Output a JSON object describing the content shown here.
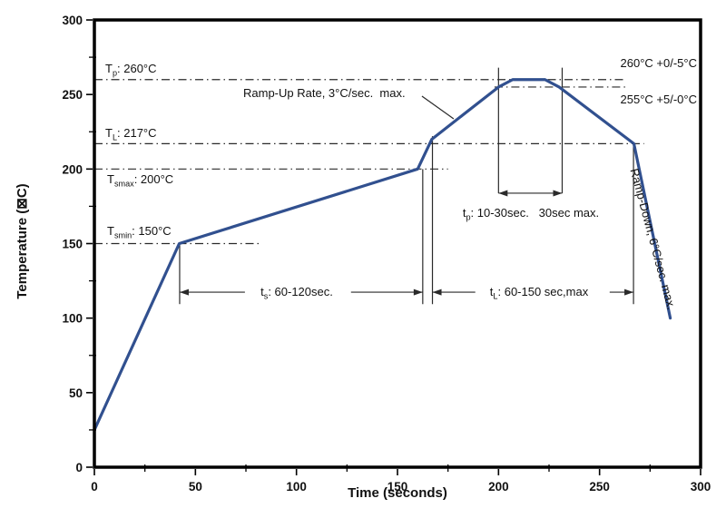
{
  "page": {
    "background": "#ffffff"
  },
  "chart_data": {
    "type": "line",
    "title": "",
    "xlabel": "Time (seconds)",
    "ylabel": "Temperature (⊠C)",
    "xlim": [
      0,
      300
    ],
    "ylim": [
      0,
      300
    ],
    "x_ticks": [
      0,
      50,
      100,
      150,
      200,
      250,
      300
    ],
    "y_ticks": [
      0,
      50,
      100,
      150,
      200,
      250,
      300
    ],
    "minor_tick_step": 25,
    "grid": false,
    "line_color": "#31508f",
    "axis_color": "#000000",
    "annotation_line_color": "#2a2a2a",
    "series": [
      {
        "name": "reflow-temperature-profile",
        "points_time_sec_temp_c": [
          [
            0,
            25
          ],
          [
            42,
            150
          ],
          [
            160,
            200
          ],
          [
            167,
            220
          ],
          [
            200,
            255
          ],
          [
            207,
            260
          ],
          [
            223,
            260
          ],
          [
            230,
            255
          ],
          [
            267,
            217
          ],
          [
            285,
            100
          ]
        ]
      }
    ],
    "reference_lines": [
      {
        "id": "tp",
        "temp_c": 260,
        "t_start": 0,
        "t_end": 263
      },
      {
        "id": "peak255",
        "temp_c": 255,
        "t_start": 198,
        "t_end": 263
      },
      {
        "id": "tl",
        "temp_c": 217,
        "t_start": 0,
        "t_end": 272
      },
      {
        "id": "tsmax",
        "temp_c": 200,
        "t_start": 0,
        "t_end": 175
      },
      {
        "id": "tsmin",
        "temp_c": 150,
        "t_start": 0,
        "t_end": 82
      }
    ],
    "marker_lines": [
      {
        "t": 42.2,
        "temp_top": 150,
        "temp_bottom": 109.4
      },
      {
        "t": 162.5,
        "temp_top": 200,
        "temp_bottom": 109.4
      },
      {
        "t": 167.3,
        "temp_top": 222,
        "temp_bottom": 109.4
      },
      {
        "t": 200,
        "temp_top": 268,
        "temp_bottom": 183.8
      },
      {
        "t": 231.5,
        "temp_top": 268,
        "temp_bottom": 183.8
      },
      {
        "t": 266.8,
        "temp_top": 217,
        "temp_bottom": 109.4
      }
    ],
    "dimension_arrows": [
      {
        "id": "ts",
        "temp_c": 117.4,
        "segments": [
          {
            "t1": 42.2,
            "t2": 74.5,
            "head": "start"
          },
          {
            "t1": 127,
            "t2": 162.5,
            "head": "end"
          }
        ]
      },
      {
        "id": "tl",
        "temp_c": 117.4,
        "segments": [
          {
            "t1": 167.3,
            "t2": 188.5,
            "head": "start"
          },
          {
            "t1": 255,
            "t2": 266.8,
            "head": "end"
          }
        ]
      },
      {
        "id": "tp",
        "temp_c": 183.8,
        "segments": [
          {
            "t1": 200,
            "t2": 231.5,
            "head": "both"
          }
        ]
      }
    ],
    "leader_line": {
      "from_t": 162.1,
      "from_temp": 248.9,
      "to_t": 177.8,
      "to_temp": 233.7
    },
    "labels": {
      "t_p": {
        "prefix": "T",
        "sub": "p",
        "rest": ": 260°C"
      },
      "t_l": {
        "prefix": "T",
        "sub": "L",
        "rest": ": 217°C"
      },
      "t_smax": {
        "prefix": "T",
        "sub": "smax",
        "rest": ": 200°C"
      },
      "t_smin": {
        "prefix": "T",
        "sub": "smin",
        "rest": ": 150°C"
      },
      "ramp_up": "Ramp-Up Rate, 3°C/sec.  max.",
      "peak_upper_tol": "260°C +0/-5°C",
      "peak_lower_tol": "255°C +5/-0°C",
      "t_p_time": {
        "prefix": "t",
        "sub": "p",
        "rest": ": 10-30sec.   30sec max."
      },
      "t_s_time": {
        "prefix": "t",
        "sub": "s",
        "rest": ": 60-120sec."
      },
      "t_l_time": {
        "prefix": "t",
        "sub": "L",
        "rest": ": 60-150 sec,max"
      },
      "ramp_down": "Ramp-Down, 6°C/sec. max."
    }
  }
}
